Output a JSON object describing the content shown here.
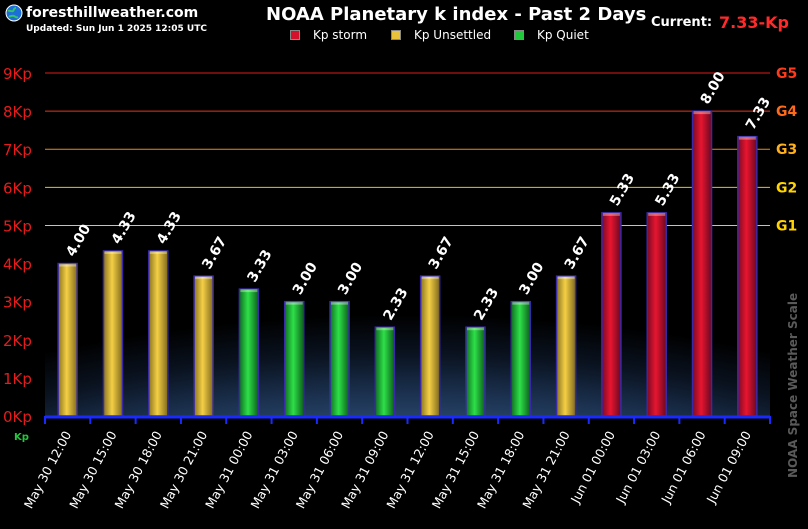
{
  "header": {
    "site": "foresthillweather.com",
    "updated": "Updated: Sun Jun 1 2025 12:05 UTC",
    "title": "NOAA Planetary k index - Past 2 Days",
    "current_label": "Current:",
    "current_value": "7.33-Kp"
  },
  "legend": [
    {
      "label": "Kp storm",
      "color": "#d4102a"
    },
    {
      "label": "Kp Unsettled",
      "color": "#e8c23a"
    },
    {
      "label": "Kp Quiet",
      "color": "#22c83c"
    }
  ],
  "colors": {
    "storm": "#d4102a",
    "unsettled": "#e8c23a",
    "quiet": "#22c83c",
    "axis": "#1a2aff",
    "ylabel": "#e41c1c",
    "glabel": "#ffd400"
  },
  "chart_data": {
    "type": "bar",
    "title": "NOAA Planetary k index - Past 2 Days",
    "xlabel": "",
    "ylabel": "Kp",
    "ylim": [
      0,
      9
    ],
    "y_ticks": [
      "0Kp",
      "1Kp",
      "2Kp",
      "3Kp",
      "4Kp",
      "5Kp",
      "6Kp",
      "7Kp",
      "8Kp",
      "9Kp"
    ],
    "categories": [
      "May 30 12:00",
      "May 30 15:00",
      "May 30 18:00",
      "May 30 21:00",
      "May 31 00:00",
      "May 31 03:00",
      "May 31 06:00",
      "May 31 09:00",
      "May 31 12:00",
      "May 31 15:00",
      "May 31 18:00",
      "May 31 21:00",
      "Jun 01 00:00",
      "Jun 01 03:00",
      "Jun 01 06:00",
      "Jun 01 09:00"
    ],
    "values": [
      4.0,
      4.33,
      4.33,
      3.67,
      3.33,
      3.0,
      3.0,
      2.33,
      3.67,
      2.33,
      3.0,
      3.67,
      5.33,
      5.33,
      8.0,
      7.33
    ],
    "value_labels": [
      "4.00",
      "4.33",
      "4.33",
      "3.67",
      "3.33",
      "3.00",
      "3.00",
      "2.33",
      "3.67",
      "2.33",
      "3.00",
      "3.67",
      "5.33",
      "5.33",
      "8.00",
      "7.33"
    ],
    "levels": [
      "unsettled",
      "unsettled",
      "unsettled",
      "unsettled",
      "quiet",
      "quiet",
      "quiet",
      "quiet",
      "unsettled",
      "quiet",
      "quiet",
      "unsettled",
      "storm",
      "storm",
      "storm",
      "storm"
    ],
    "storm_thresholds": [
      {
        "label": "G1",
        "value": 5
      },
      {
        "label": "G2",
        "value": 6
      },
      {
        "label": "G3",
        "value": 7
      },
      {
        "label": "G4",
        "value": 8
      },
      {
        "label": "G5",
        "value": 9
      }
    ],
    "axis_unit_label": "Kp",
    "side_label": "NOAA Space Weather Scale"
  }
}
